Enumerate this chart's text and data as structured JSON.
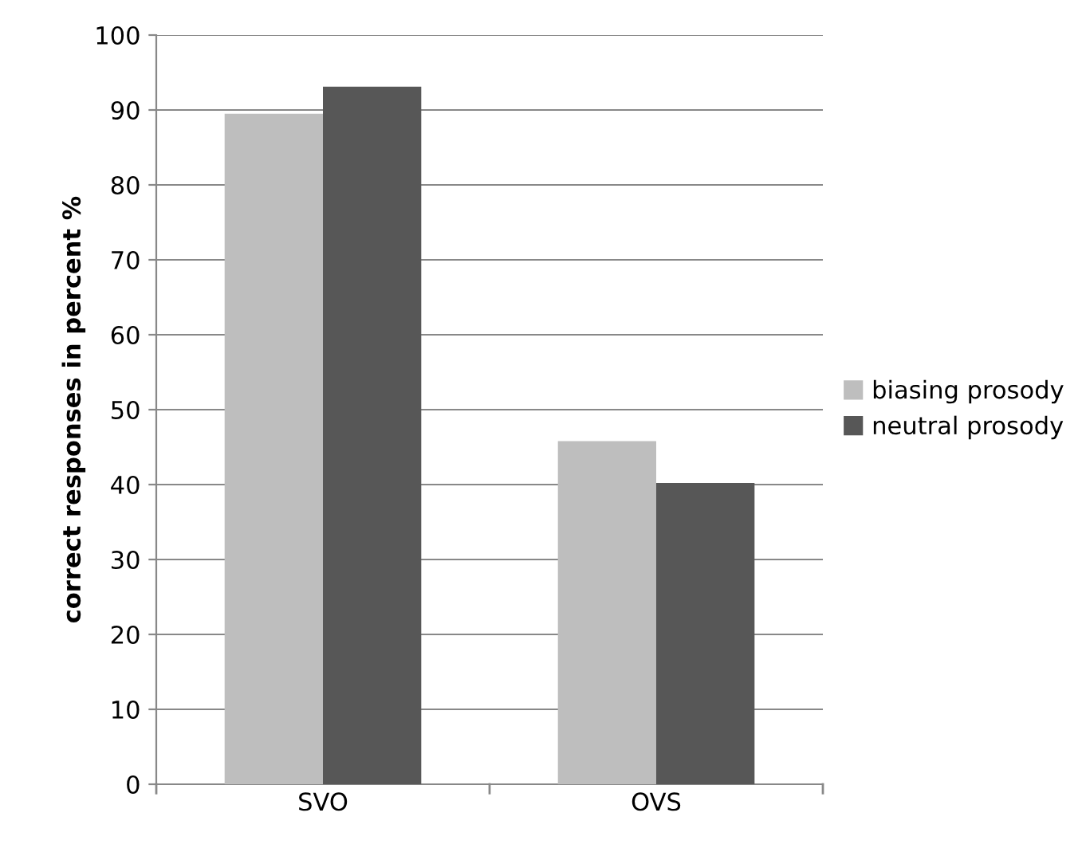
{
  "chart_data": {
    "type": "bar",
    "ylabel": "correct responses in percent %",
    "categories": [
      "SVO",
      "OVS"
    ],
    "series": [
      {
        "name": "biasing prosody",
        "color": "#bebebe",
        "values": [
          89.5,
          45.8
        ]
      },
      {
        "name": "neutral prosody",
        "color": "#575757",
        "values": [
          93.1,
          40.2
        ]
      }
    ],
    "ylim": [
      0,
      100
    ],
    "yticks": [
      0,
      10,
      20,
      30,
      40,
      50,
      60,
      70,
      80,
      90,
      100
    ],
    "grid": "y",
    "legend": "right"
  }
}
